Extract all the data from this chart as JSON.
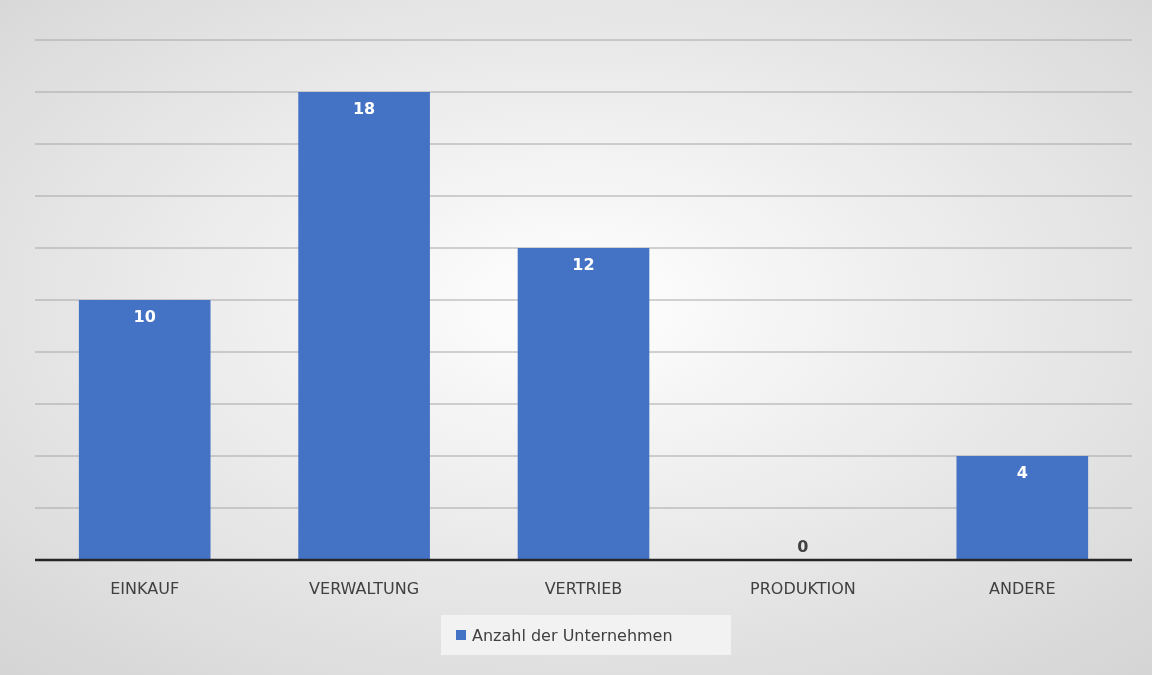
{
  "chart_data": {
    "type": "bar",
    "categories": [
      "EINKAUF",
      "VERWALTUNG",
      "VERTRIEB",
      "PRODUKTION",
      "ANDERE"
    ],
    "series": [
      {
        "name": "Anzahl der Unternehmen",
        "color": "#4472c4",
        "values": [
          10,
          18,
          12,
          0,
          4
        ]
      }
    ],
    "ylim": [
      0,
      20
    ],
    "yticks": [
      {
        "value": 0,
        "label": null
      },
      {
        "value": 2,
        "label": null
      },
      {
        "value": 4,
        "label": null
      },
      {
        "value": 6,
        "label": null
      },
      {
        "value": 8,
        "label": null
      },
      {
        "value": 10,
        "label": null
      },
      {
        "value": 12,
        "label": null
      },
      {
        "value": 14,
        "label": null
      },
      {
        "value": 16,
        "label": null
      },
      {
        "value": 18,
        "label": null
      },
      {
        "value": 20,
        "label": null
      }
    ],
    "tick_labels": "x",
    "grid": "y",
    "data_labels": true,
    "legend": "bottom"
  }
}
